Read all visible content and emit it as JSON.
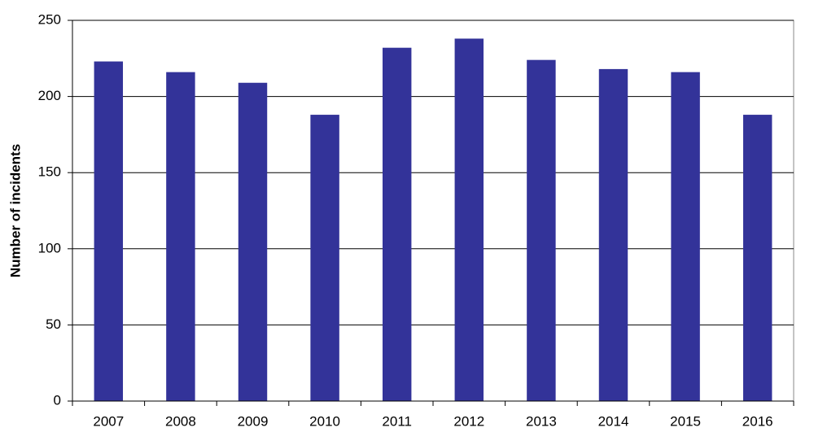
{
  "chart_data": {
    "type": "bar",
    "y_label": "Number of incidents",
    "categories": [
      "2007",
      "2008",
      "2009",
      "2010",
      "2011",
      "2012",
      "2013",
      "2014",
      "2015",
      "2016"
    ],
    "values": [
      223,
      216,
      209,
      188,
      232,
      238,
      224,
      218,
      216,
      188
    ],
    "color": "#333399",
    "ylim": [
      0,
      250
    ],
    "yticks": [
      0,
      50,
      100,
      150,
      200,
      250
    ],
    "grid": true
  }
}
